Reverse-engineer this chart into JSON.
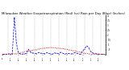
{
  "title": "Milwaukee Weather Evapotranspiration (Red) (vs) Rain per Day (Blue) (Inches)",
  "title_fontsize": 2.8,
  "background_color": "#ffffff",
  "x_labels": [
    "1/1",
    "1/8",
    "1/15",
    "1/22",
    "1/29",
    "2/5",
    "2/12",
    "2/19",
    "2/26",
    "3/5",
    "3/12",
    "3/19",
    "3/26",
    "4/2",
    "4/9",
    "4/16",
    "4/23",
    "4/30",
    "5/7",
    "5/14",
    "5/21",
    "5/28",
    "6/4",
    "6/11",
    "6/18",
    "6/25",
    "7/2",
    "7/9",
    "7/16",
    "7/23",
    "7/30",
    "8/6",
    "8/13",
    "8/20",
    "8/27",
    "9/3",
    "9/10",
    "9/17",
    "9/24",
    "10/1",
    "10/8",
    "10/15",
    "10/22",
    "10/29",
    "11/5",
    "11/12",
    "11/19",
    "11/26",
    "12/3",
    "12/10",
    "12/17",
    "12/24"
  ],
  "et_values": [
    0.04,
    0.04,
    0.05,
    0.05,
    0.06,
    0.07,
    0.09,
    0.11,
    0.15,
    0.19,
    0.25,
    0.3,
    0.36,
    0.38,
    0.42,
    0.46,
    0.5,
    0.52,
    0.58,
    0.62,
    0.65,
    0.67,
    0.7,
    0.72,
    0.74,
    0.72,
    0.7,
    0.68,
    0.67,
    0.65,
    0.62,
    0.58,
    0.55,
    0.5,
    0.46,
    0.42,
    0.38,
    0.34,
    0.3,
    0.24,
    0.19,
    0.15,
    0.12,
    0.09,
    0.07,
    0.06,
    0.05,
    0.05,
    0.04,
    0.04,
    0.03,
    0.03
  ],
  "rain_values": [
    0.02,
    0.05,
    0.03,
    0.08,
    0.06,
    0.1,
    3.8,
    1.2,
    0.15,
    0.08,
    0.05,
    0.1,
    0.12,
    0.55,
    0.25,
    0.18,
    0.12,
    0.1,
    0.22,
    0.15,
    0.12,
    0.08,
    0.2,
    0.12,
    0.08,
    0.05,
    0.18,
    0.12,
    0.08,
    0.25,
    0.15,
    0.05,
    0.1,
    0.12,
    0.06,
    0.1,
    0.2,
    0.14,
    0.08,
    0.04,
    0.4,
    0.6,
    0.9,
    0.7,
    0.3,
    0.18,
    0.1,
    0.08,
    0.06,
    0.04,
    0.03,
    0.02
  ],
  "ylim": [
    0,
    4.0
  ],
  "ytick_values": [
    0.5,
    1.0,
    1.5,
    2.0,
    2.5,
    3.0,
    3.5,
    4.0
  ],
  "ytick_labels": [
    ".5",
    "1.",
    "1.5",
    "2.",
    "2.5",
    "3.",
    "3.5",
    "4."
  ],
  "grid_color": "#999999",
  "et_color": "#cc0000",
  "rain_color": "#0000cc",
  "vline_positions": [
    3,
    7,
    11,
    16,
    20,
    24,
    28,
    32,
    37,
    41,
    45,
    49
  ],
  "figsize": [
    1.6,
    0.87
  ],
  "dpi": 100
}
